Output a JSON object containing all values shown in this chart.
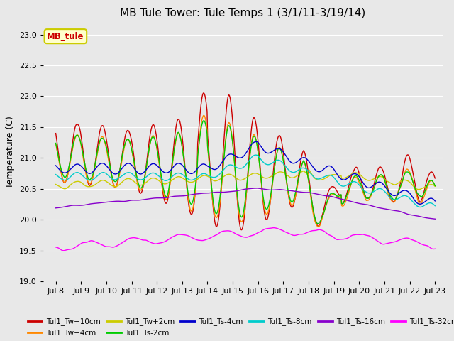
{
  "title": "MB Tule Tower: Tule Temps 1 (3/1/11-3/19/14)",
  "ylabel": "Temperature (C)",
  "xlim_days": [
    7.5,
    23.3
  ],
  "ylim": [
    19.0,
    23.2
  ],
  "yticks": [
    19.0,
    19.5,
    20.0,
    20.5,
    21.0,
    21.5,
    22.0,
    22.5,
    23.0
  ],
  "xtick_labels": [
    "Jul 8",
    "Jul 9",
    "Jul 10",
    "Jul 11",
    "Jul 12",
    "Jul 13",
    "Jul 14",
    "Jul 15",
    "Jul 16",
    "Jul 17",
    "Jul 18",
    "Jul 19",
    "Jul 20",
    "Jul 21",
    "Jul 22",
    "Jul 23"
  ],
  "xtick_positions": [
    8,
    9,
    10,
    11,
    12,
    13,
    14,
    15,
    16,
    17,
    18,
    19,
    20,
    21,
    22,
    23
  ],
  "bg_color": "#e8e8e8",
  "plot_bg_color": "#e8e8e8",
  "series": [
    {
      "name": "Tul1_Tw+10cm",
      "color": "#cc0000",
      "lw": 1.0
    },
    {
      "name": "Tul1_Tw+4cm",
      "color": "#ff8800",
      "lw": 1.0
    },
    {
      "name": "Tul1_Tw+2cm",
      "color": "#cccc00",
      "lw": 1.0
    },
    {
      "name": "Tul1_Ts-2cm",
      "color": "#00cc00",
      "lw": 1.0
    },
    {
      "name": "Tul1_Ts-4cm",
      "color": "#0000cc",
      "lw": 1.0
    },
    {
      "name": "Tul1_Ts-8cm",
      "color": "#00cccc",
      "lw": 1.0
    },
    {
      "name": "Tul1_Ts-16cm",
      "color": "#8800cc",
      "lw": 1.0
    },
    {
      "name": "Tul1_Ts-32cm",
      "color": "#ff00ff",
      "lw": 1.0
    }
  ],
  "annotation_text": "MB_tule",
  "annotation_color": "#cc0000",
  "annotation_bg": "#ffffcc",
  "annotation_border": "#cccc00",
  "legend_ncol": 6
}
